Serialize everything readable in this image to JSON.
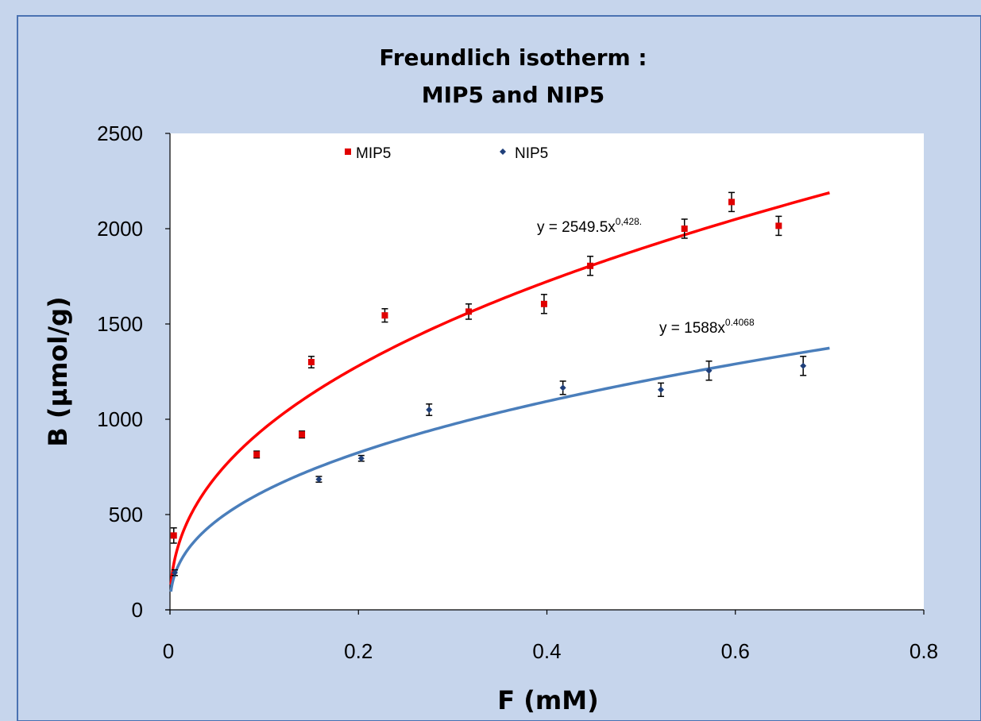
{
  "chart_data": {
    "type": "scatter",
    "title": [
      "Freundlich isotherm :",
      "MIP5 and NIP5"
    ],
    "xlabel": "F (mM)",
    "ylabel": "B (µmol/g)",
    "xlim": [
      0,
      0.8
    ],
    "ylim": [
      0,
      2500
    ],
    "x_ticks": [
      0,
      0.2,
      0.4,
      0.6,
      0.8
    ],
    "x_tick_labels": [
      "0",
      "0.2",
      "0.4",
      "0.6",
      "0.8"
    ],
    "y_ticks": [
      0,
      500,
      1000,
      1500,
      2000,
      2500
    ],
    "y_tick_labels": [
      "0",
      "500",
      "1000",
      "1500",
      "2000",
      "2500"
    ],
    "grid": false,
    "legend_position": "top",
    "series": [
      {
        "name": "MIP5",
        "color": "#e00000",
        "marker": "square",
        "x": [
          0.004,
          0.092,
          0.14,
          0.15,
          0.228,
          0.317,
          0.397,
          0.446,
          0.546,
          0.596,
          0.646
        ],
        "y": [
          390,
          815,
          920,
          1300,
          1545,
          1565,
          1605,
          1805,
          2000,
          2140,
          2015
        ],
        "err": [
          40,
          18,
          18,
          30,
          35,
          40,
          50,
          50,
          50,
          50,
          50
        ],
        "fit": {
          "a": 2549.5,
          "b": 0.428,
          "x_range": [
            0.001,
            0.7
          ],
          "color": "#ff0000"
        },
        "equation": {
          "base": "y = 2549.5x",
          "exp": "0,428."
        }
      },
      {
        "name": "NIP5",
        "color": "#1f3f7a",
        "marker": "diamond",
        "x": [
          0.005,
          0.158,
          0.203,
          0.275,
          0.417,
          0.521,
          0.572,
          0.672
        ],
        "y": [
          195,
          685,
          795,
          1050,
          1165,
          1155,
          1255,
          1280
        ],
        "err": [
          15,
          15,
          15,
          30,
          35,
          35,
          50,
          50
        ],
        "fit": {
          "a": 1588,
          "b": 0.4068,
          "x_range": [
            0.001,
            0.7
          ],
          "color": "#4a7ebb"
        },
        "equation": {
          "base": "y = 1588x",
          "exp": "0.4068"
        }
      }
    ]
  }
}
